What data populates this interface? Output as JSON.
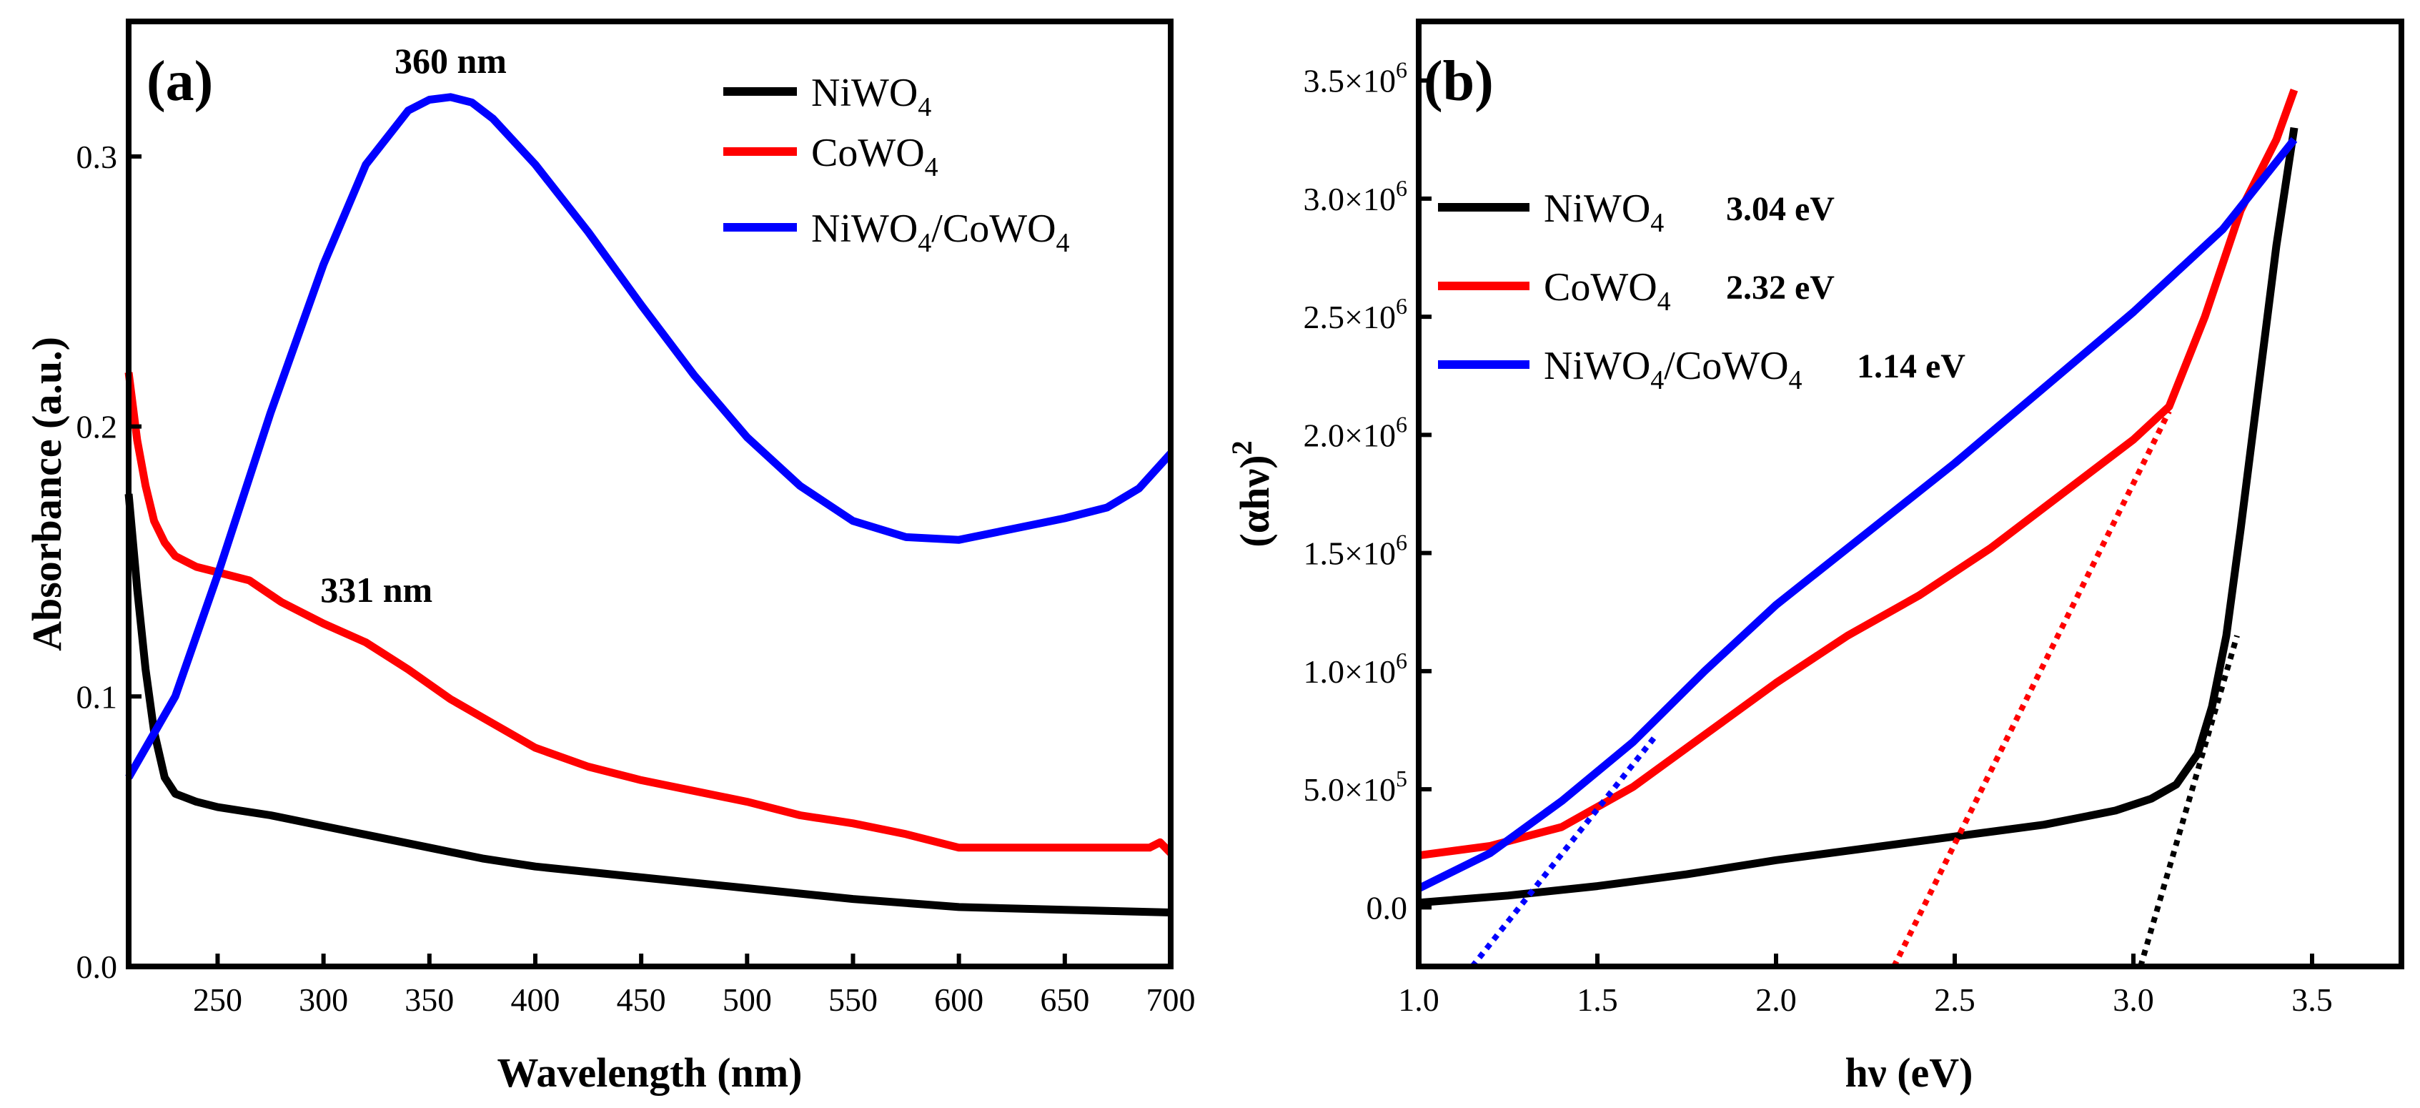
{
  "chart_data": [
    {
      "panel": "(a)",
      "type": "line",
      "xlabel": "Wavelength (nm)",
      "ylabel": "Absorbance (a.u.)",
      "xlim": [
        208,
        700
      ],
      "ylim": [
        0,
        0.35
      ],
      "xticks": [
        250,
        300,
        350,
        400,
        450,
        500,
        550,
        600,
        650,
        700
      ],
      "yticks": [
        0.0,
        0.1,
        0.2,
        0.3
      ],
      "ytick_labels": [
        "0.0",
        "0.1",
        "0.2",
        "0.3"
      ],
      "legend_position": "top-right",
      "series": [
        {
          "name": "NiWO4",
          "base": "NiWO",
          "sub": "4",
          "color": "#000000",
          "x": [
            208,
            212,
            216,
            220,
            225,
            230,
            240,
            250,
            275,
            300,
            325,
            350,
            375,
            400,
            450,
            500,
            550,
            600,
            650,
            700
          ],
          "y": [
            0.175,
            0.14,
            0.11,
            0.087,
            0.07,
            0.064,
            0.061,
            0.059,
            0.056,
            0.052,
            0.048,
            0.044,
            0.04,
            0.037,
            0.033,
            0.029,
            0.025,
            0.022,
            0.021,
            0.02
          ]
        },
        {
          "name": "CoWO4",
          "base": "CoWO",
          "sub": "4",
          "color": "#ff0000",
          "x": [
            208,
            212,
            216,
            220,
            225,
            230,
            240,
            250,
            265,
            280,
            300,
            320,
            340,
            360,
            380,
            400,
            425,
            450,
            475,
            500,
            525,
            550,
            575,
            600,
            650,
            690,
            695,
            700
          ],
          "y": [
            0.22,
            0.195,
            0.178,
            0.165,
            0.157,
            0.152,
            0.148,
            0.146,
            0.143,
            0.135,
            0.127,
            0.12,
            0.11,
            0.099,
            0.09,
            0.081,
            0.074,
            0.069,
            0.065,
            0.061,
            0.056,
            0.053,
            0.049,
            0.044,
            0.044,
            0.044,
            0.046,
            0.042
          ]
        },
        {
          "name": "NiWO4/CoWO4",
          "base": "NiWO",
          "sub": "4",
          "tail": "/CoWO",
          "tail_sub": "4",
          "color": "#0000ff",
          "x": [
            208,
            230,
            250,
            275,
            300,
            320,
            340,
            350,
            360,
            370,
            380,
            400,
            425,
            450,
            475,
            500,
            525,
            550,
            575,
            600,
            625,
            650,
            670,
            685,
            700
          ],
          "y": [
            0.07,
            0.1,
            0.145,
            0.205,
            0.26,
            0.297,
            0.317,
            0.321,
            0.322,
            0.32,
            0.314,
            0.297,
            0.272,
            0.245,
            0.219,
            0.196,
            0.178,
            0.165,
            0.159,
            0.158,
            0.162,
            0.166,
            0.17,
            0.177,
            0.19
          ]
        }
      ],
      "annotations": [
        {
          "text": "360 nm",
          "x": 360,
          "y": 0.331
        },
        {
          "text": "331 nm",
          "x": 325,
          "y": 0.135
        }
      ]
    },
    {
      "panel": "(b)",
      "type": "line",
      "xlabel": "hν (eV)",
      "ylabel": "(αhν)",
      "ylabel_sup": "2",
      "xlim": [
        1.0,
        3.75
      ],
      "ylim": [
        -250000,
        3750000
      ],
      "xticks": [
        1.0,
        1.5,
        2.0,
        2.5,
        3.0,
        3.5
      ],
      "xtick_labels": [
        "1.0",
        "1.5",
        "2.0",
        "2.5",
        "3.0",
        "3.5"
      ],
      "yticks": [
        0,
        500000,
        1000000,
        1500000,
        2000000,
        2500000,
        3000000,
        3500000
      ],
      "ytick_labels": [
        {
          "mant": "0.0",
          "exp": ""
        },
        {
          "mant": "5.0×10",
          "exp": "5"
        },
        {
          "mant": "1.0×10",
          "exp": "6"
        },
        {
          "mant": "1.5×10",
          "exp": "6"
        },
        {
          "mant": "2.0×10",
          "exp": "6"
        },
        {
          "mant": "2.5×10",
          "exp": "6"
        },
        {
          "mant": "3.0×10",
          "exp": "6"
        },
        {
          "mant": "3.5×10",
          "exp": "6"
        }
      ],
      "legend_position": "upper-left",
      "series": [
        {
          "name": "NiWO4",
          "base": "NiWO",
          "sub": "4",
          "gap": "3.04 eV",
          "color": "#000000",
          "x": [
            1.0,
            1.25,
            1.5,
            1.75,
            2.0,
            2.25,
            2.5,
            2.75,
            2.95,
            3.05,
            3.12,
            3.18,
            3.22,
            3.26,
            3.3,
            3.35,
            3.4,
            3.45
          ],
          "y": [
            20000,
            50000,
            90000,
            140000,
            200000,
            250000,
            300000,
            350000,
            410000,
            460000,
            520000,
            650000,
            850000,
            1150000,
            1600000,
            2200000,
            2800000,
            3300000
          ]
        },
        {
          "name": "CoWO4",
          "base": "CoWO",
          "sub": "4",
          "gap": "2.32 eV",
          "color": "#ff0000",
          "x": [
            1.0,
            1.2,
            1.4,
            1.6,
            1.8,
            2.0,
            2.2,
            2.4,
            2.6,
            2.8,
            3.0,
            3.1,
            3.2,
            3.3,
            3.4,
            3.45
          ],
          "y": [
            220000,
            260000,
            340000,
            510000,
            730000,
            950000,
            1150000,
            1320000,
            1520000,
            1750000,
            1980000,
            2120000,
            2500000,
            2950000,
            3250000,
            3460000
          ]
        },
        {
          "name": "NiWO4/CoWO4",
          "base": "NiWO",
          "sub": "4",
          "tail": "/CoWO",
          "tail_sub": "4",
          "gap": "1.14 eV",
          "color": "#0000ff",
          "x": [
            1.0,
            1.2,
            1.4,
            1.6,
            1.8,
            2.0,
            2.25,
            2.5,
            2.75,
            3.0,
            3.25,
            3.45
          ],
          "y": [
            80000,
            230000,
            450000,
            700000,
            1000000,
            1280000,
            1580000,
            1880000,
            2200000,
            2520000,
            2870000,
            3250000
          ]
        }
      ],
      "tangents": [
        {
          "color": "#000000",
          "x": [
            3.02,
            3.29
          ],
          "y": [
            -250000,
            1150000
          ]
        },
        {
          "color": "#ff0000",
          "x": [
            2.33,
            3.1
          ],
          "y": [
            -250000,
            2100000
          ]
        },
        {
          "color": "#0000ff",
          "x": [
            1.15,
            1.66
          ],
          "y": [
            -250000,
            720000
          ]
        }
      ]
    }
  ]
}
